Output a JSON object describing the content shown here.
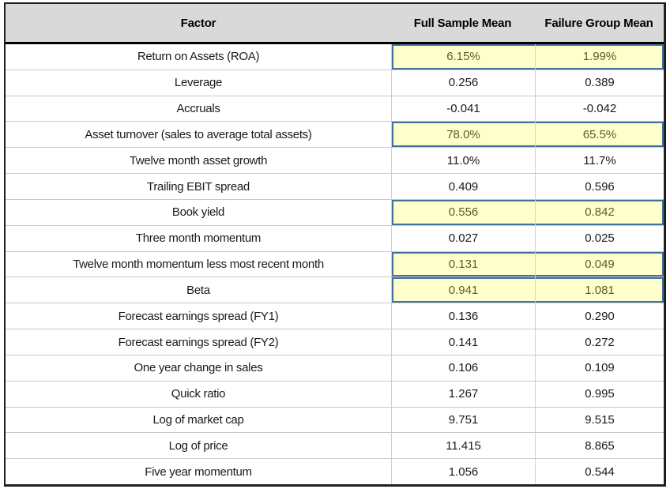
{
  "chart_data": {
    "type": "table",
    "columns": [
      "Factor",
      "Full Sample Mean",
      "Failure Group Mean"
    ],
    "rows": [
      {
        "factor": "Return on Assets (ROA)",
        "full_sample_mean": "6.15%",
        "failure_group_mean": "1.99%",
        "highlighted": true
      },
      {
        "factor": "Leverage",
        "full_sample_mean": "0.256",
        "failure_group_mean": "0.389",
        "highlighted": false
      },
      {
        "factor": "Accruals",
        "full_sample_mean": "-0.041",
        "failure_group_mean": "-0.042",
        "highlighted": false
      },
      {
        "factor": "Asset turnover (sales to average total assets)",
        "full_sample_mean": "78.0%",
        "failure_group_mean": "65.5%",
        "highlighted": true
      },
      {
        "factor": "Twelve month asset growth",
        "full_sample_mean": "11.0%",
        "failure_group_mean": "11.7%",
        "highlighted": false
      },
      {
        "factor": "Trailing EBIT spread",
        "full_sample_mean": "0.409",
        "failure_group_mean": "0.596",
        "highlighted": false
      },
      {
        "factor": "Book yield",
        "full_sample_mean": "0.556",
        "failure_group_mean": "0.842",
        "highlighted": true
      },
      {
        "factor": "Three month momentum",
        "full_sample_mean": "0.027",
        "failure_group_mean": "0.025",
        "highlighted": false
      },
      {
        "factor": "Twelve month momentum less most recent month",
        "full_sample_mean": "0.131",
        "failure_group_mean": "0.049",
        "highlighted": true
      },
      {
        "factor": "Beta",
        "full_sample_mean": "0.941",
        "failure_group_mean": "1.081",
        "highlighted": true
      },
      {
        "factor": "Forecast earnings spread (FY1)",
        "full_sample_mean": "0.136",
        "failure_group_mean": "0.290",
        "highlighted": false
      },
      {
        "factor": "Forecast earnings spread (FY2)",
        "full_sample_mean": "0.141",
        "failure_group_mean": "0.272",
        "highlighted": false
      },
      {
        "factor": "One year change in sales",
        "full_sample_mean": "0.106",
        "failure_group_mean": "0.109",
        "highlighted": false
      },
      {
        "factor": "Quick ratio",
        "full_sample_mean": "1.267",
        "failure_group_mean": "0.995",
        "highlighted": false
      },
      {
        "factor": "Log of market cap",
        "full_sample_mean": "9.751",
        "failure_group_mean": "9.515",
        "highlighted": false
      },
      {
        "factor": "Log of price",
        "full_sample_mean": "11.415",
        "failure_group_mean": "8.865",
        "highlighted": false
      },
      {
        "factor": "Five year momentum",
        "full_sample_mean": "1.056",
        "failure_group_mean": "0.544",
        "highlighted": false
      }
    ],
    "highlighted_factors": [
      "Return on Assets (ROA)",
      "Asset turnover (sales to average total assets)",
      "Book yield",
      "Twelve month momentum less most recent month",
      "Beta"
    ],
    "layout": {
      "grid": "horizontal row separators, light gray",
      "header_style": "gray band, bold, thick black rule beneath",
      "highlight_style": "pale yellow fill with steel-blue outline on mean columns"
    }
  },
  "colors": {
    "header_bg": "#d9d9d9",
    "header_text": "#000000",
    "body_text": "#1a1a1a",
    "highlight_bg": "#ffffcc",
    "highlight_border": "#41719c",
    "highlight_text": "#5c5c26",
    "row_separator": "#c9c9c9",
    "outer_border": "#1f1f1f"
  }
}
